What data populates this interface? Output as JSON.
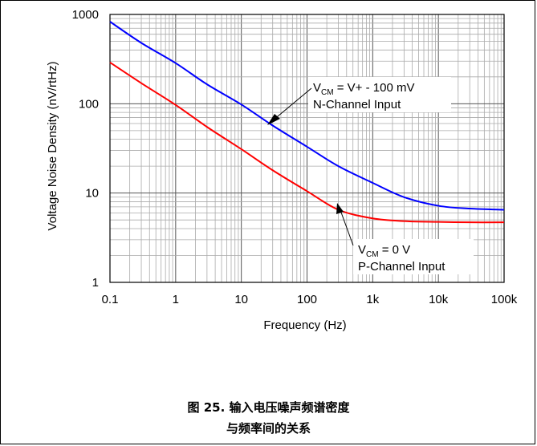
{
  "chart_data": {
    "type": "line",
    "xlabel": "Frequency (Hz)",
    "ylabel": "Voltage Noise Density (nV/rtHz)",
    "x_scale": "log",
    "y_scale": "log",
    "xlim": [
      0.1,
      100000
    ],
    "ylim": [
      1,
      1000
    ],
    "x_ticks": [
      "0.1",
      "1",
      "10",
      "100",
      "1k",
      "10k",
      "100k"
    ],
    "y_ticks": [
      "1",
      "10",
      "100",
      "1000"
    ],
    "grid": true,
    "series": [
      {
        "name": "N-Channel Input",
        "color": "#0000ff",
        "x": [
          0.1,
          0.3,
          1,
          3,
          10,
          30,
          100,
          300,
          1000,
          3000,
          10000,
          30000,
          100000
        ],
        "y": [
          830,
          480,
          285,
          165,
          98,
          57,
          33,
          20,
          13,
          9,
          7.2,
          6.7,
          6.5
        ]
      },
      {
        "name": "P-Channel Input",
        "color": "#ff0000",
        "x": [
          0.1,
          0.3,
          1,
          3,
          10,
          30,
          100,
          300,
          1000,
          3000,
          10000,
          30000,
          100000
        ],
        "y": [
          290,
          170,
          97,
          55,
          31,
          18,
          10.5,
          6.5,
          5.2,
          4.85,
          4.75,
          4.7,
          4.7
        ]
      }
    ],
    "annotations": [
      {
        "main": "V",
        "sub": "CM",
        "rest": " = V+ - 100 mV",
        "line2": "N-Channel Input"
      },
      {
        "main": "V",
        "sub": "CM",
        "rest": " = 0 V",
        "line2": "P-Channel Input"
      }
    ]
  },
  "caption": {
    "line1": "图 25. 输入电压噪声频谱密度",
    "line2": "与频率间的关系"
  }
}
